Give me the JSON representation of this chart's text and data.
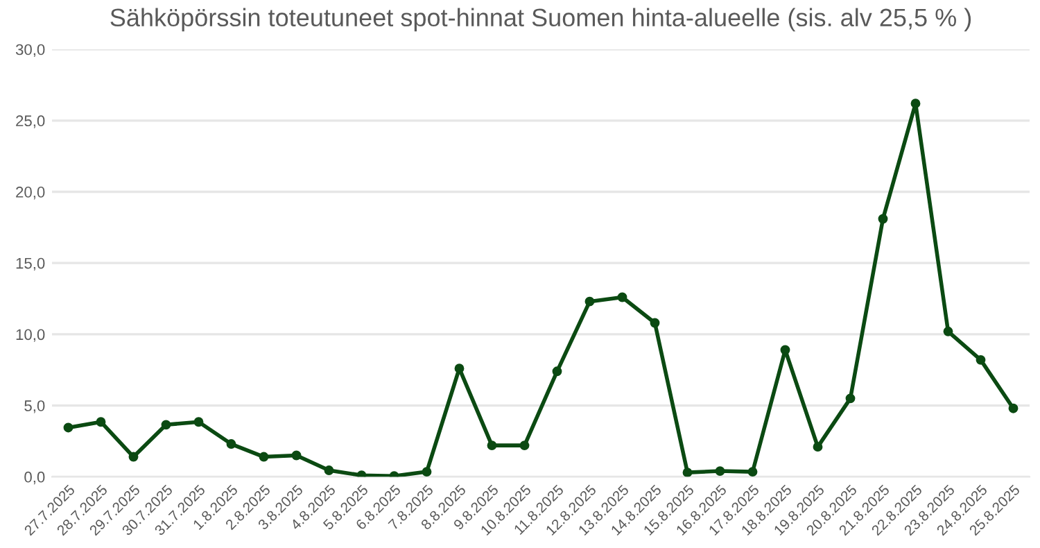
{
  "chart_data": {
    "type": "line",
    "title": "Sähköpörssin toteutuneet spot-hinnat Suomen hinta-alueelle (sis. alv 25,5 % )",
    "categories": [
      "27.7.2025",
      "28.7.2025",
      "29.7.2025",
      "30.7.2025",
      "31.7.2025",
      "1.8.2025",
      "2.8.2025",
      "3.8.2025",
      "4.8.2025",
      "5.8.2025",
      "6.8.2025",
      "7.8.2025",
      "8.8.2025",
      "9.8.2025",
      "10.8.2025",
      "11.8.2025",
      "12.8.2025",
      "13.8.2025",
      "14.8.2025",
      "15.8.2025",
      "16.8.2025",
      "17.8.2025",
      "18.8.2025",
      "19.8.2025",
      "20.8.2025",
      "21.8.2025",
      "22.8.2025",
      "23.8.2025",
      "24.8.2025",
      "25.8.2025"
    ],
    "series": [
      {
        "color": "#0b4a12",
        "values": [
          3.45,
          3.85,
          1.4,
          3.65,
          3.85,
          2.3,
          1.4,
          1.5,
          0.45,
          0.1,
          0.05,
          0.35,
          7.6,
          2.2,
          2.2,
          7.4,
          12.3,
          12.6,
          10.8,
          0.3,
          0.4,
          0.35,
          8.9,
          2.1,
          5.5,
          18.1,
          26.2,
          10.2,
          8.2,
          4.8
        ]
      }
    ],
    "ylim": [
      0,
      30
    ],
    "yticks": [
      {
        "value": 0,
        "label": "0,0"
      },
      {
        "value": 5,
        "label": "5,0"
      },
      {
        "value": 10,
        "label": "10,0"
      },
      {
        "value": 15,
        "label": "15,0"
      },
      {
        "value": 20,
        "label": "20,0"
      },
      {
        "value": 25,
        "label": "25,0"
      },
      {
        "value": 30,
        "label": "30,0"
      }
    ],
    "grid": "y",
    "legend": false,
    "marker": "circle",
    "line_style": "solid"
  }
}
